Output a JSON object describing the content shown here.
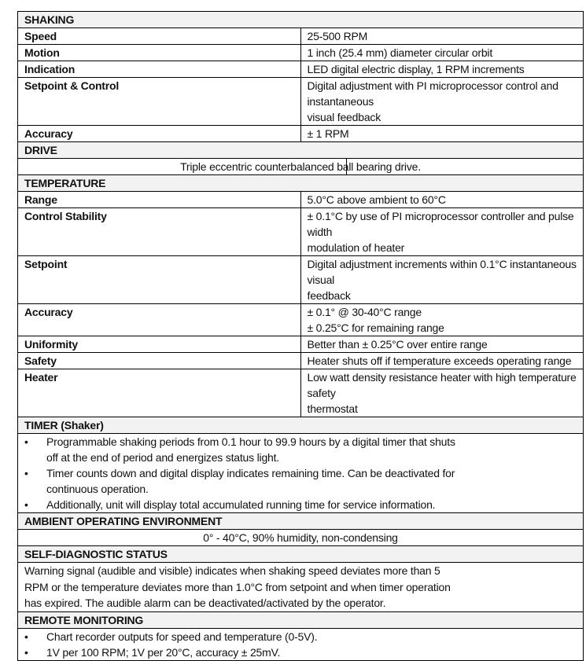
{
  "shaking": {
    "title": "SHAKING",
    "rows": [
      {
        "label": "Speed",
        "value": [
          "25-500 RPM"
        ]
      },
      {
        "label": "Motion",
        "value": [
          "1 inch (25.4 mm) diameter circular orbit"
        ]
      },
      {
        "label": "Indication",
        "value": [
          "LED digital electric display, 1 RPM increments"
        ]
      },
      {
        "label": "Setpoint & Control",
        "value": [
          "Digital adjustment with PI microprocessor control and instantaneous",
          "visual feedback"
        ]
      },
      {
        "label": "Accuracy",
        "value": [
          "± 1 RPM"
        ]
      }
    ]
  },
  "drive": {
    "title": "DRIVE",
    "text": "Triple eccentric counterbalanced ball bearing drive."
  },
  "temperature": {
    "title": "TEMPERATURE",
    "rows": [
      {
        "label": "Range",
        "value": [
          "5.0°C above ambient to 60°C"
        ]
      },
      {
        "label": "Control Stability",
        "value": [
          "± 0.1°C by use of PI microprocessor controller and pulse width",
          "modulation of heater"
        ]
      },
      {
        "label": "Setpoint",
        "value": [
          "Digital adjustment increments within 0.1°C instantaneous visual",
          "feedback"
        ]
      },
      {
        "label": "Accuracy",
        "value": [
          "± 0.1° @ 30-40°C range",
          "± 0.25°C for remaining range"
        ]
      },
      {
        "label": "Uniformity",
        "value": [
          "Better than ± 0.25°C over entire range"
        ]
      },
      {
        "label": "Safety",
        "value": [
          "Heater shuts off if temperature exceeds operating range"
        ]
      },
      {
        "label": "Heater",
        "value": [
          "Low watt density resistance heater with high temperature safety",
          "thermostat"
        ]
      }
    ]
  },
  "timer": {
    "title": "TIMER (Shaker)",
    "bullets": [
      [
        "Programmable shaking periods from 0.1 hour to 99.9 hours by a digital timer that shuts",
        "off at the end of period and energizes status light."
      ],
      [
        "Timer counts down and digital display indicates remaining time.  Can be deactivated for",
        "continuous operation."
      ],
      [
        "Additionally, unit will display total accumulated running time for service information."
      ]
    ]
  },
  "ambient": {
    "title": "AMBIENT OPERATING ENVIRONMENT",
    "text": "0° - 40°C, 90% humidity, non-condensing"
  },
  "diagnostic": {
    "title": "SELF-DIAGNOSTIC STATUS",
    "lines": [
      "Warning signal (audible and visible) indicates when shaking speed deviates more than 5",
      "RPM or the temperature deviates more than 1.0°C from setpoint and when timer operation",
      "has expired.  The audible alarm can be deactivated/activated by the operator."
    ]
  },
  "remote": {
    "title": "REMOTE MONITORING",
    "bullets": [
      [
        "Chart recorder outputs for speed and temperature (0-5V)."
      ],
      [
        "1V per 100 RPM; 1V per 20°C, accuracy ± 25mV."
      ]
    ]
  }
}
